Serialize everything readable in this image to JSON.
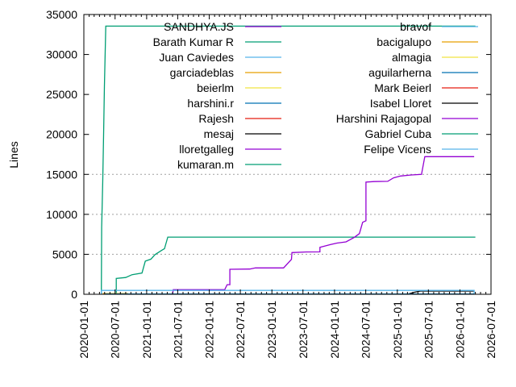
{
  "chart_data": {
    "type": "line",
    "title": "",
    "xlabel": "",
    "ylabel": "Lines",
    "x_type": "date",
    "xlim": [
      "2020-01-01",
      "2026-07-01"
    ],
    "ylim": [
      0,
      35000
    ],
    "x_ticks": [
      "2020-01-01",
      "2020-07-01",
      "2021-01-01",
      "2021-07-01",
      "2022-01-01",
      "2022-07-01",
      "2023-01-01",
      "2023-07-01",
      "2024-01-01",
      "2024-07-01",
      "2025-01-01",
      "2025-07-01",
      "2026-01-01",
      "2026-07-01"
    ],
    "y_ticks": [
      0,
      5000,
      10000,
      15000,
      20000,
      25000,
      30000,
      35000
    ],
    "grid": "horizontal dashed at y ticks",
    "legend_placement": "top-right, two columns",
    "step": true,
    "series": [
      {
        "name": "SANDHYA.JS",
        "color": "#9400d3",
        "points": []
      },
      {
        "name": "Barath Kumar R",
        "color": "#009e73",
        "points": [
          [
            "2020-07-08",
            0
          ],
          [
            "2020-07-08",
            1990
          ],
          [
            "2020-09-01",
            2100
          ],
          [
            "2020-10-08",
            2450
          ],
          [
            "2020-12-05",
            2650
          ],
          [
            "2020-12-24",
            4150
          ],
          [
            "2021-01-26",
            4400
          ],
          [
            "2021-02-18",
            4950
          ],
          [
            "2021-03-28",
            5480
          ],
          [
            "2021-04-15",
            5700
          ],
          [
            "2021-05-04",
            7150
          ],
          [
            "2026-04-01",
            7150
          ]
        ]
      },
      {
        "name": "Juan Caviedes",
        "color": "#56b4e9",
        "points": []
      },
      {
        "name": "garciadeblas",
        "color": "#e69f00",
        "points": [
          [
            "2020-04-20",
            80
          ],
          [
            "2020-09-15",
            80
          ]
        ]
      },
      {
        "name": "beierlm",
        "color": "#f0e442",
        "points": []
      },
      {
        "name": "harshini.r",
        "color": "#0072b2",
        "points": []
      },
      {
        "name": "Rajesh",
        "color": "#e51e10",
        "points": []
      },
      {
        "name": "mesaj",
        "color": "#000000",
        "points": [
          [
            "2025-03-01",
            0
          ],
          [
            "2025-04-10",
            250
          ],
          [
            "2025-05-15",
            400
          ],
          [
            "2026-03-25",
            400
          ]
        ]
      },
      {
        "name": "lloretgalleg",
        "color": "#9400d3",
        "points": [
          [
            "2021-06-01",
            0
          ],
          [
            "2021-06-05",
            570
          ],
          [
            "2022-04-01",
            570
          ],
          [
            "2022-04-15",
            1200
          ],
          [
            "2022-05-01",
            1200
          ],
          [
            "2022-05-01",
            3130
          ],
          [
            "2022-08-25",
            3160
          ],
          [
            "2022-09-27",
            3300
          ],
          [
            "2023-03-10",
            3300
          ],
          [
            "2023-04-25",
            4370
          ],
          [
            "2023-04-28",
            5210
          ],
          [
            "2023-07-20",
            5300
          ],
          [
            "2023-10-08",
            5310
          ],
          [
            "2023-10-08",
            5880
          ],
          [
            "2023-12-10",
            6220
          ],
          [
            "2024-01-15",
            6400
          ],
          [
            "2024-03-08",
            6560
          ],
          [
            "2024-04-26",
            7130
          ],
          [
            "2024-05-25",
            7600
          ],
          [
            "2024-06-13",
            9010
          ],
          [
            "2024-07-02",
            9200
          ],
          [
            "2024-07-02",
            14030
          ],
          [
            "2024-08-18",
            14100
          ],
          [
            "2024-11-06",
            14130
          ],
          [
            "2024-12-10",
            14560
          ],
          [
            "2025-01-20",
            14800
          ],
          [
            "2025-03-25",
            14930
          ],
          [
            "2025-05-22",
            15000
          ],
          [
            "2025-06-10",
            17220
          ],
          [
            "2026-03-25",
            17220
          ]
        ]
      },
      {
        "name": "kumaran.m",
        "color": "#009e73",
        "points": [
          [
            "2020-04-12",
            0
          ],
          [
            "2020-04-14",
            8400
          ],
          [
            "2020-04-20",
            14000
          ],
          [
            "2020-04-25",
            20000
          ],
          [
            "2020-04-30",
            26000
          ],
          [
            "2020-05-08",
            33550
          ],
          [
            "2026-04-01",
            33550
          ]
        ]
      },
      {
        "name": "bravof",
        "color": "#56b4e9",
        "points": [
          [
            "2020-04-12",
            0
          ],
          [
            "2020-04-12",
            480
          ],
          [
            "2026-03-25",
            480
          ],
          [
            "2026-03-25",
            0
          ]
        ]
      },
      {
        "name": "bacigalupo",
        "color": "#e69f00",
        "points": []
      },
      {
        "name": "almagia",
        "color": "#f0e442",
        "points": []
      },
      {
        "name": "aguilarherna",
        "color": "#0072b2",
        "points": [
          [
            "2020-05-01",
            30
          ],
          [
            "2026-03-25",
            30
          ]
        ]
      },
      {
        "name": "Mark Beierl",
        "color": "#e51e10",
        "points": []
      },
      {
        "name": "Isabel Lloret",
        "color": "#000000",
        "points": []
      },
      {
        "name": "Harshini Rajagopal",
        "color": "#9400d3",
        "points": []
      },
      {
        "name": "Gabriel Cuba",
        "color": "#009e73",
        "points": []
      },
      {
        "name": "Felipe Vicens",
        "color": "#56b4e9",
        "points": []
      }
    ]
  }
}
